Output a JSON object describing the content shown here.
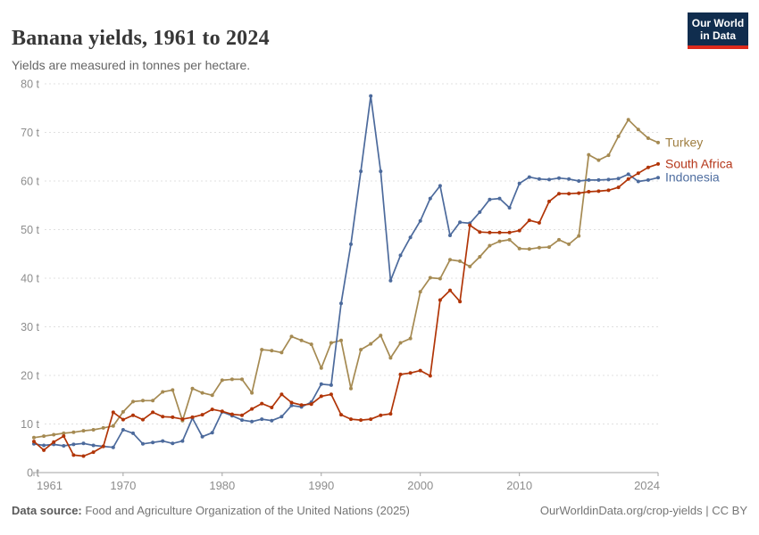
{
  "header": {
    "title": "Banana yields, 1961 to 2024",
    "subtitle": "Yields are measured in tonnes per hectare."
  },
  "logo": {
    "line1": "Our World",
    "line2": "in Data",
    "bg": "#102d4e",
    "accent": "#dd2a1c"
  },
  "footer": {
    "source_label": "Data source:",
    "source_text": " Food and Agriculture Organization of the United Nations (2025)",
    "credit": "OurWorldinData.org/crop-yields | CC BY"
  },
  "chart_data": {
    "type": "line",
    "title": "Banana yields, 1961 to 2024",
    "ylabel": "tonnes per hectare",
    "unit_suffix": " t",
    "grid": "dashed-horizontal",
    "legend_position": "line-end-labels-right",
    "xlim": [
      1961,
      2024
    ],
    "ylim": [
      0,
      80
    ],
    "x_ticks": [
      1961,
      1970,
      1980,
      1990,
      2000,
      2010,
      2024
    ],
    "y_ticks": [
      0,
      10,
      20,
      30,
      40,
      50,
      60,
      70,
      80
    ],
    "years": [
      1961,
      1962,
      1963,
      1964,
      1965,
      1966,
      1967,
      1968,
      1969,
      1970,
      1971,
      1972,
      1973,
      1974,
      1975,
      1976,
      1977,
      1978,
      1979,
      1980,
      1981,
      1982,
      1983,
      1984,
      1985,
      1986,
      1987,
      1988,
      1989,
      1990,
      1991,
      1992,
      1993,
      1994,
      1995,
      1996,
      1997,
      1998,
      1999,
      2000,
      2001,
      2002,
      2003,
      2004,
      2005,
      2006,
      2007,
      2008,
      2009,
      2010,
      2011,
      2012,
      2013,
      2014,
      2015,
      2016,
      2017,
      2018,
      2019,
      2020,
      2021,
      2022,
      2023,
      2024
    ],
    "series": [
      {
        "name": "Turkey",
        "color": "#9f7e40",
        "line_color": "#a58a52",
        "values": [
          7.2,
          7.5,
          7.8,
          8.1,
          8.3,
          8.6,
          8.8,
          9.2,
          9.6,
          12.5,
          14.6,
          14.8,
          14.8,
          16.6,
          17.0,
          10.7,
          17.3,
          16.4,
          15.9,
          19.0,
          19.2,
          19.2,
          16.4,
          25.3,
          25.1,
          24.7,
          28.0,
          27.2,
          26.4,
          21.5,
          26.7,
          27.2,
          17.3,
          25.3,
          26.5,
          28.2,
          23.6,
          26.7,
          27.6,
          37.2,
          40.1,
          39.9,
          43.8,
          43.5,
          42.4,
          44.4,
          46.7,
          47.6,
          47.9,
          46.1,
          46.0,
          46.3,
          46.4,
          47.9,
          47.0,
          48.7,
          65.4,
          64.3,
          65.3,
          69.2,
          72.6,
          70.6,
          68.8,
          67.9
        ]
      },
      {
        "name": "Indonesia",
        "color": "#4f6ea0",
        "line_color": "#4c6a9c",
        "values": [
          5.9,
          5.6,
          5.8,
          5.5,
          5.8,
          6.0,
          5.6,
          5.4,
          5.2,
          8.8,
          8.1,
          5.9,
          6.2,
          6.5,
          6.0,
          6.5,
          11.2,
          7.4,
          8.2,
          12.5,
          11.7,
          10.8,
          10.5,
          11.0,
          10.7,
          11.5,
          13.8,
          13.5,
          14.5,
          18.2,
          18.0,
          34.8,
          47.0,
          62.0,
          77.5,
          62.0,
          39.5,
          44.7,
          48.4,
          51.8,
          56.4,
          59.0,
          48.8,
          51.5,
          51.3,
          53.6,
          56.2,
          56.4,
          54.5,
          59.5,
          60.8,
          60.4,
          60.3,
          60.6,
          60.4,
          60.0,
          60.2,
          60.2,
          60.3,
          60.5,
          61.4,
          59.9,
          60.2,
          60.7
        ]
      },
      {
        "name": "South Africa",
        "color": "#b5371a",
        "line_color": "#b13507",
        "values": [
          6.4,
          4.6,
          6.3,
          7.5,
          3.6,
          3.4,
          4.2,
          5.4,
          12.4,
          10.9,
          11.8,
          10.9,
          12.4,
          11.5,
          11.4,
          11.0,
          11.4,
          11.9,
          13.0,
          12.6,
          12.0,
          11.8,
          13.1,
          14.2,
          13.4,
          16.1,
          14.4,
          13.9,
          14.1,
          15.7,
          16.1,
          11.9,
          11.0,
          10.8,
          11.0,
          11.8,
          12.1,
          20.2,
          20.5,
          21.0,
          19.9,
          35.5,
          37.5,
          35.2,
          50.9,
          49.5,
          49.4,
          49.4,
          49.4,
          49.8,
          51.9,
          51.4,
          55.8,
          57.4,
          57.4,
          57.5,
          57.8,
          57.9,
          58.1,
          58.7,
          60.4,
          61.6,
          62.8,
          63.5
        ]
      }
    ],
    "axis_colors": {
      "tick_label": "#8d8d8d",
      "axis_line": "#a3a3a3",
      "gridline": "#e0e0e0"
    }
  }
}
